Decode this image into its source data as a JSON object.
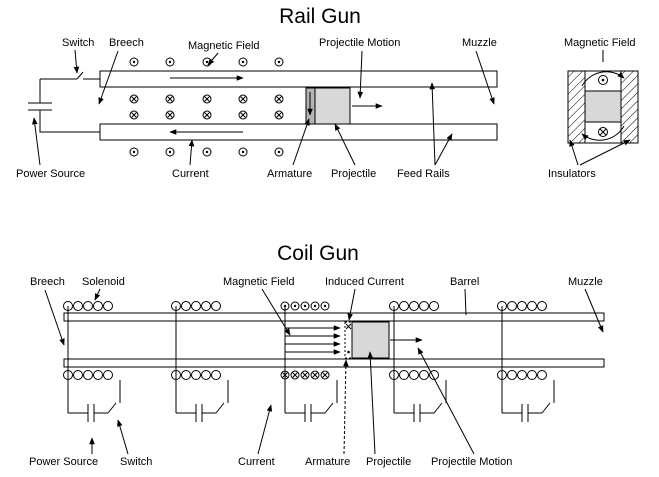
{
  "rail_gun": {
    "title": "Rail Gun",
    "labels": {
      "switch": "Switch",
      "breech": "Breech",
      "magnetic_field": "Magnetic Field",
      "projectile_motion": "Projectile Motion",
      "muzzle": "Muzzle",
      "cross_section_field": "Magnetic Field",
      "power_source": "Power Source",
      "current": "Current",
      "armature": "Armature",
      "projectile": "Projectile",
      "feed_rails": "Feed Rails",
      "insulators": "Insulators"
    }
  },
  "coil_gun": {
    "title": "Coil Gun",
    "labels": {
      "breech": "Breech",
      "solenoid": "Solenoid",
      "magnetic_field": "Magnetic Field",
      "induced_current": "Induced Current",
      "barrel": "Barrel",
      "muzzle": "Muzzle",
      "power_source": "Power Source",
      "switch": "Switch",
      "current": "Current",
      "armature": "Armature",
      "projectile": "Projectile",
      "projectile_motion": "Projectile Motion"
    }
  },
  "colors": {
    "line": "#000000",
    "armature_fill": "#b4b4b4",
    "projectile_fill": "#d8d8d8",
    "background": "#ffffff"
  }
}
